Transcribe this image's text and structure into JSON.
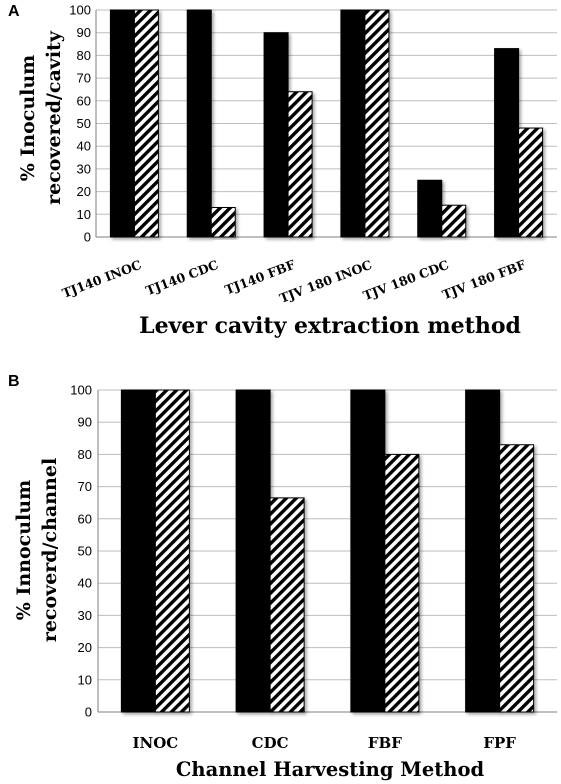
{
  "chart_data": [
    {
      "panel": "A",
      "type": "bar",
      "categories": [
        "TJ140 INOC",
        "TJ140 CDC",
        "TJ140 FBF",
        "TJV 180 INOC",
        "TJV 180 CDC",
        "TJV 180 FBF"
      ],
      "series": [
        {
          "fill": "solid",
          "values": [
            100,
            100,
            90,
            100,
            25,
            83
          ]
        },
        {
          "fill": "hatched",
          "values": [
            100,
            13,
            64,
            100,
            14,
            48
          ]
        }
      ],
      "ylabel_lines": [
        "% Inoculum",
        "recovered/cavity"
      ],
      "xlabel": "Lever cavity extraction method",
      "ylim": [
        0,
        100
      ],
      "yticks": [
        0,
        10,
        20,
        30,
        40,
        50,
        60,
        70,
        80,
        90,
        100
      ],
      "grid": true
    },
    {
      "panel": "B",
      "type": "bar",
      "categories": [
        "INOC",
        "CDC",
        "FBF",
        "FPF"
      ],
      "series": [
        {
          "fill": "solid",
          "values": [
            100,
            100,
            100,
            100
          ]
        },
        {
          "fill": "hatched",
          "values": [
            100,
            66.5,
            80,
            83
          ]
        }
      ],
      "ylabel_lines": [
        "% Innoculum",
        "recoverd/channel"
      ],
      "xlabel": "Channel Harvesting Method",
      "ylim": [
        0,
        100
      ],
      "yticks": [
        0,
        10,
        20,
        30,
        40,
        50,
        60,
        70,
        80,
        90,
        100
      ],
      "grid": true
    }
  ],
  "colors": {
    "solid": "#000000",
    "hatch": "#000000",
    "grid": "#bdbdbd",
    "axis": "#7f7f7f"
  }
}
